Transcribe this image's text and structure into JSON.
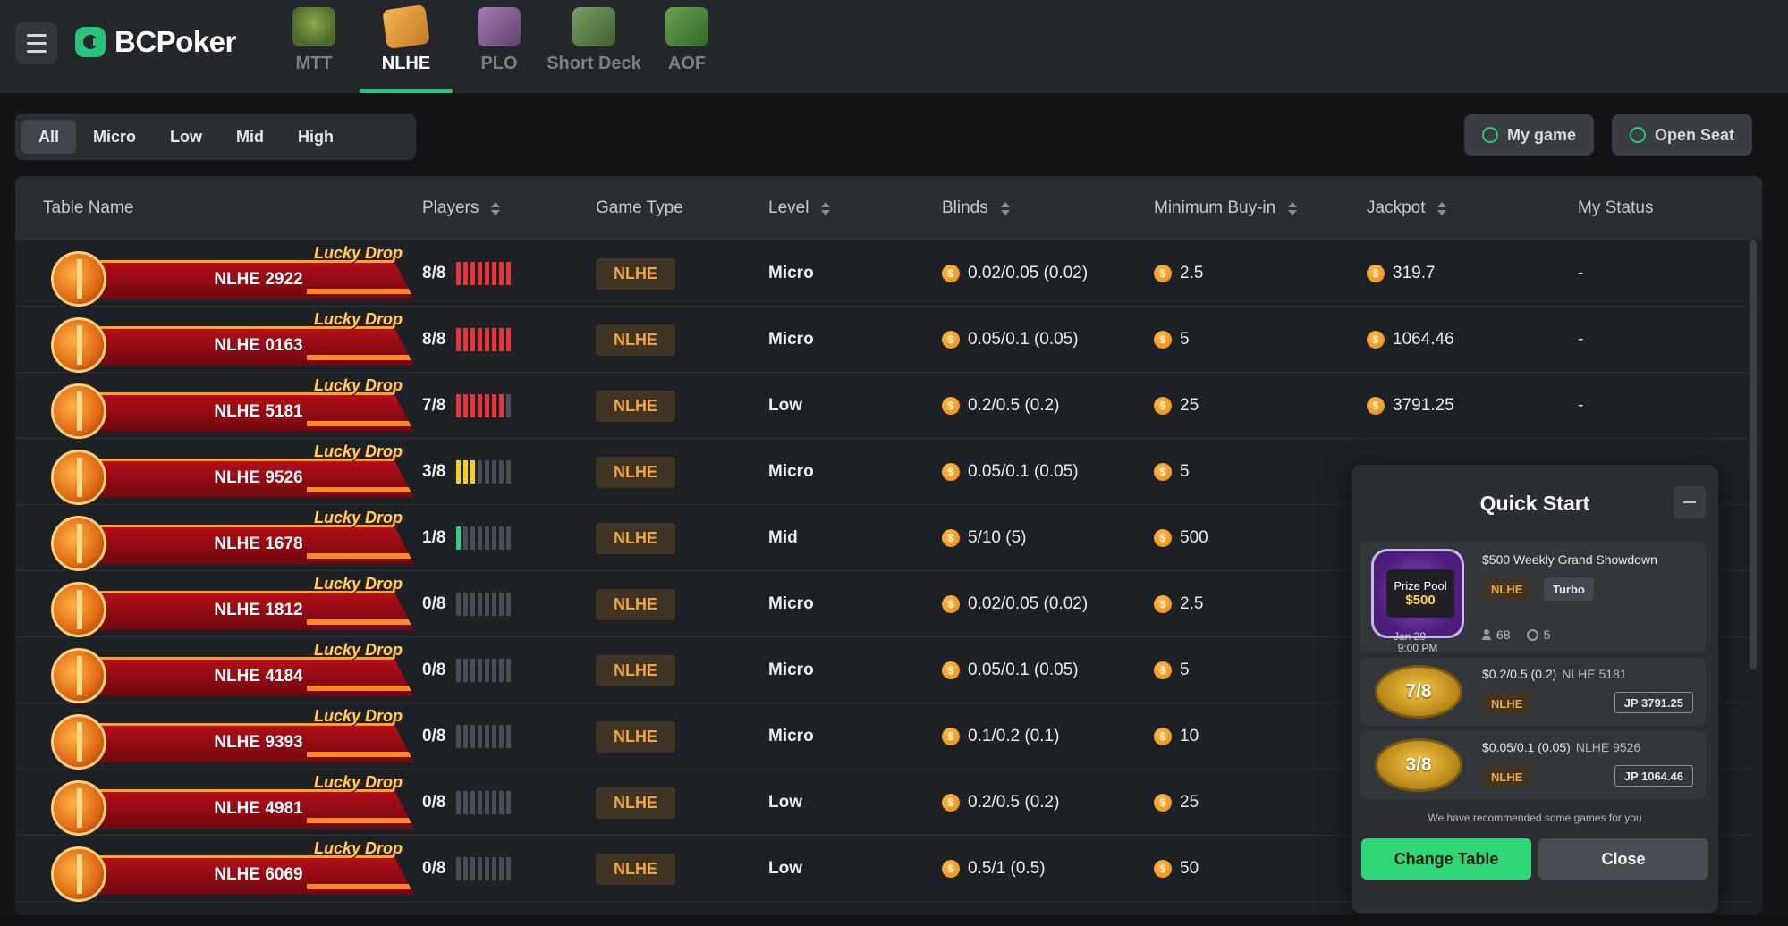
{
  "header": {
    "logo_text": "BCPoker",
    "tabs": [
      {
        "label": "MTT",
        "icon": "mtt-trophy-icon"
      },
      {
        "label": "NLHE",
        "icon": "nlhe-cards-icon",
        "active": true
      },
      {
        "label": "PLO",
        "icon": "plo-cards-icon"
      },
      {
        "label": "Short Deck",
        "icon": "short-deck-icon"
      },
      {
        "label": "AOF",
        "icon": "aof-icon"
      }
    ]
  },
  "filters": {
    "levels": [
      "All",
      "Micro",
      "Low",
      "Mid",
      "High"
    ],
    "active": "All",
    "toggles": [
      "My game",
      "Open Seat"
    ]
  },
  "table": {
    "columns": [
      "Table Name",
      "Players",
      "Game Type",
      "Level",
      "Blinds",
      "Minimum Buy-in",
      "Jackpot",
      "My Status"
    ],
    "promo_label": "Lucky Drop",
    "rows": [
      {
        "name": "NLHE 2922",
        "players": "8/8",
        "seated": 8,
        "game_type": "NLHE",
        "level": "Micro",
        "blinds": "0.02/0.05 (0.02)",
        "min_buyin": "2.5",
        "jackpot": "319.7",
        "status": "-"
      },
      {
        "name": "NLHE 0163",
        "players": "8/8",
        "seated": 8,
        "game_type": "NLHE",
        "level": "Micro",
        "blinds": "0.05/0.1 (0.05)",
        "min_buyin": "5",
        "jackpot": "1064.46",
        "status": "-"
      },
      {
        "name": "NLHE 5181",
        "players": "7/8",
        "seated": 7,
        "game_type": "NLHE",
        "level": "Low",
        "blinds": "0.2/0.5 (0.2)",
        "min_buyin": "25",
        "jackpot": "3791.25",
        "status": "-"
      },
      {
        "name": "NLHE 9526",
        "players": "3/8",
        "seated": 3,
        "game_type": "NLHE",
        "level": "Micro",
        "blinds": "0.05/0.1 (0.05)",
        "min_buyin": "5",
        "jackpot": "",
        "status": ""
      },
      {
        "name": "NLHE 1678",
        "players": "1/8",
        "seated": 1,
        "game_type": "NLHE",
        "level": "Mid",
        "blinds": "5/10 (5)",
        "min_buyin": "500",
        "jackpot": "",
        "status": ""
      },
      {
        "name": "NLHE 1812",
        "players": "0/8",
        "seated": 0,
        "game_type": "NLHE",
        "level": "Micro",
        "blinds": "0.02/0.05 (0.02)",
        "min_buyin": "2.5",
        "jackpot": "",
        "status": ""
      },
      {
        "name": "NLHE 4184",
        "players": "0/8",
        "seated": 0,
        "game_type": "NLHE",
        "level": "Micro",
        "blinds": "0.05/0.1 (0.05)",
        "min_buyin": "5",
        "jackpot": "",
        "status": ""
      },
      {
        "name": "NLHE 9393",
        "players": "0/8",
        "seated": 0,
        "game_type": "NLHE",
        "level": "Micro",
        "blinds": "0.1/0.2 (0.1)",
        "min_buyin": "10",
        "jackpot": "",
        "status": ""
      },
      {
        "name": "NLHE 4981",
        "players": "0/8",
        "seated": 0,
        "game_type": "NLHE",
        "level": "Low",
        "blinds": "0.2/0.5 (0.2)",
        "min_buyin": "25",
        "jackpot": "",
        "status": ""
      },
      {
        "name": "NLHE 6069",
        "players": "0/8",
        "seated": 0,
        "game_type": "NLHE",
        "level": "Low",
        "blinds": "0.5/1 (0.5)",
        "min_buyin": "50",
        "jackpot": "",
        "status": ""
      }
    ]
  },
  "quick_start": {
    "title": "Quick Start",
    "tournament": {
      "prize_label": "Prize Pool",
      "prize_amount": "$500",
      "date": "Jan 29",
      "time": "9:00 PM",
      "title": "$500 Weekly Grand Showdown",
      "badges": [
        "NLHE",
        "Turbo"
      ],
      "players": "68",
      "duration": "5"
    },
    "seats": [
      {
        "seats": "7/8",
        "blinds": "$0.2/0.5 (0.2)",
        "name": "NLHE 5181",
        "type": "NLHE",
        "jackpot": "JP 3791.25"
      },
      {
        "seats": "3/8",
        "blinds": "$0.05/0.1 (0.05)",
        "name": "NLHE 9526",
        "type": "NLHE",
        "jackpot": "JP 1064.46"
      }
    ],
    "note": "We have recommended some games for you",
    "change_label": "Change Table",
    "close_label": "Close"
  },
  "colors": {
    "accent": "#27c47b",
    "full_table": "#e6363b",
    "partial_table": "#f2d31a",
    "open_table": "#2fcf7f",
    "game_type": "#f2a640"
  }
}
